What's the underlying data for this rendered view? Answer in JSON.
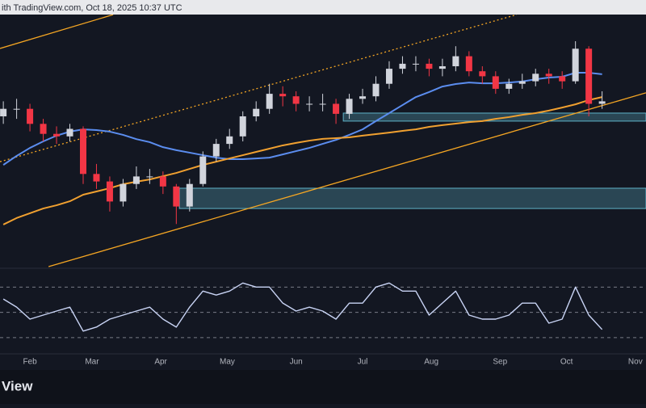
{
  "header": {
    "text": "ith TradingView.com, Oct 18, 2025 10:37 UTC"
  },
  "footer": {
    "text": "View"
  },
  "chart_data": {
    "type": "candlestick",
    "xlim": [
      18.5,
      309.8
    ],
    "ylim": [
      0,
      100
    ],
    "xticks": [
      {
        "value": 32,
        "label": "Feb"
      },
      {
        "value": 60,
        "label": "Mar"
      },
      {
        "value": 91,
        "label": "Apr"
      },
      {
        "value": 121,
        "label": "May"
      },
      {
        "value": 152,
        "label": "Jun"
      },
      {
        "value": 182,
        "label": "Jul"
      },
      {
        "value": 213,
        "label": "Aug"
      },
      {
        "value": 244,
        "label": "Sep"
      },
      {
        "value": 274,
        "label": "Oct"
      },
      {
        "value": 305,
        "label": "Nov"
      }
    ],
    "up_color": "#d1d4dc",
    "down_color": "#f23645",
    "x": [
      20,
      26,
      32,
      38,
      44,
      50,
      56,
      62,
      68,
      74,
      80,
      86,
      92,
      98,
      104,
      110,
      116,
      122,
      128,
      134,
      140,
      146,
      152,
      158,
      164,
      170,
      176,
      182,
      188,
      194,
      200,
      206,
      212,
      218,
      224,
      230,
      236,
      242,
      248,
      254,
      260,
      266,
      272,
      278,
      284,
      290
    ],
    "open": [
      60,
      63,
      63,
      57,
      53,
      52,
      55,
      37,
      34,
      26,
      33,
      36,
      36,
      32,
      24,
      33,
      44,
      49,
      52,
      60,
      63,
      69,
      68,
      65,
      65,
      65,
      61,
      67,
      68,
      73,
      79,
      81,
      81,
      79,
      80,
      84,
      78,
      76,
      71,
      73,
      74,
      77,
      76,
      74,
      87,
      65
    ],
    "high": [
      66,
      67,
      65,
      59,
      56,
      57,
      56,
      41,
      36,
      35,
      40,
      39,
      38,
      33,
      35,
      46,
      51,
      55,
      62,
      66,
      73,
      72,
      70,
      68,
      69,
      67,
      69,
      71,
      76,
      82,
      84,
      84,
      83,
      83,
      88,
      86,
      80,
      78,
      75,
      77,
      79,
      79,
      78,
      90,
      88,
      70
    ],
    "low": [
      57,
      59,
      54,
      50,
      49,
      50,
      33,
      31,
      22,
      24,
      31,
      33,
      29,
      17,
      22,
      32,
      42,
      47,
      50,
      58,
      61,
      64,
      62,
      62,
      62,
      57,
      59,
      65,
      66,
      71,
      77,
      78,
      76,
      76,
      78,
      76,
      73,
      69,
      69,
      71,
      72,
      73,
      71,
      73,
      60,
      63
    ],
    "close": [
      63,
      63,
      57,
      53,
      52,
      55,
      37,
      34,
      26,
      33,
      36,
      36,
      32,
      24,
      33,
      44,
      49,
      52,
      60,
      63,
      69,
      68,
      65,
      65,
      65,
      61,
      67,
      68,
      73,
      79,
      81,
      81,
      79,
      80,
      84,
      78,
      76,
      71,
      73,
      74,
      77,
      76,
      74,
      87,
      65,
      66
    ],
    "series": [
      {
        "color": "#5b8def",
        "values": [
          40.6,
          44.2,
          47.4,
          50,
          52.3,
          53.9,
          54.8,
          54.5,
          53.9,
          52.6,
          50.9,
          49.7,
          47.7,
          46.5,
          45.5,
          44.5,
          43.5,
          42.9,
          42.9,
          43.2,
          43.5,
          44.8,
          46.1,
          47.4,
          49,
          50.6,
          52.6,
          54.8,
          58.1,
          61.3,
          64.5,
          67.7,
          69.7,
          71.9,
          72.9,
          73.5,
          73.2,
          73.2,
          73.5,
          73.9,
          74.8,
          75.5,
          75.8,
          77.4,
          77.4,
          76.8
        ]
      },
      {
        "color": "#f0a030",
        "values": [
          16.8,
          19.4,
          21.3,
          23.2,
          24.5,
          26.1,
          28.7,
          30,
          31.3,
          32.9,
          33.9,
          34.8,
          36.1,
          37.4,
          39,
          40.6,
          41.9,
          43.2,
          44.5,
          45.8,
          47.1,
          48.4,
          49.4,
          50.3,
          51,
          51.3,
          51.6,
          52.3,
          52.9,
          53.5,
          54.2,
          54.8,
          55.8,
          56.5,
          57.1,
          57.7,
          58.1,
          59,
          59.7,
          60.6,
          61.3,
          62.3,
          63.5,
          64.8,
          66.5,
          67.7
        ]
      }
    ],
    "lines": [
      {
        "color": "#f5a623",
        "dashed": false,
        "x": [
          40.4,
          309.8
        ],
        "values": [
          0,
          69.4
        ]
      },
      {
        "color": "#f5a623",
        "dashed": true,
        "x": [
          18.5,
          251.5
        ],
        "values": [
          41.9,
          100.6
        ]
      },
      {
        "color": "#f5a623",
        "dashed": false,
        "x": [
          18.5,
          69.5
        ],
        "values": [
          87.1,
          100.6
        ]
      }
    ],
    "zones": [
      {
        "color": "#5fb3c9",
        "x": [
          173.3,
          309.8
        ],
        "values": [
          58.1,
          61.3
        ]
      },
      {
        "color": "#5fb3c9",
        "x": [
          99.4,
          309.8
        ],
        "values": [
          23.2,
          31.3
        ]
      }
    ],
    "rsi": {
      "color": "#c9d4f5",
      "ylim": [
        19,
        83
      ],
      "levels": [
        70,
        50,
        30
      ],
      "values": [
        60.5,
        54.1,
        44.6,
        47.8,
        51,
        54.1,
        35.1,
        38.3,
        44.6,
        47.8,
        51,
        54.1,
        44.6,
        38.3,
        54.1,
        66.8,
        63.7,
        66.8,
        73.2,
        70,
        70,
        57.3,
        51,
        54.1,
        51,
        44.6,
        57.3,
        57.3,
        70,
        73.2,
        66.8,
        66.8,
        47.8,
        57.3,
        66.8,
        47.8,
        44.6,
        44.6,
        47.8,
        57.3,
        57.3,
        41.4,
        44.6,
        70,
        47.8,
        36.4
      ]
    }
  }
}
